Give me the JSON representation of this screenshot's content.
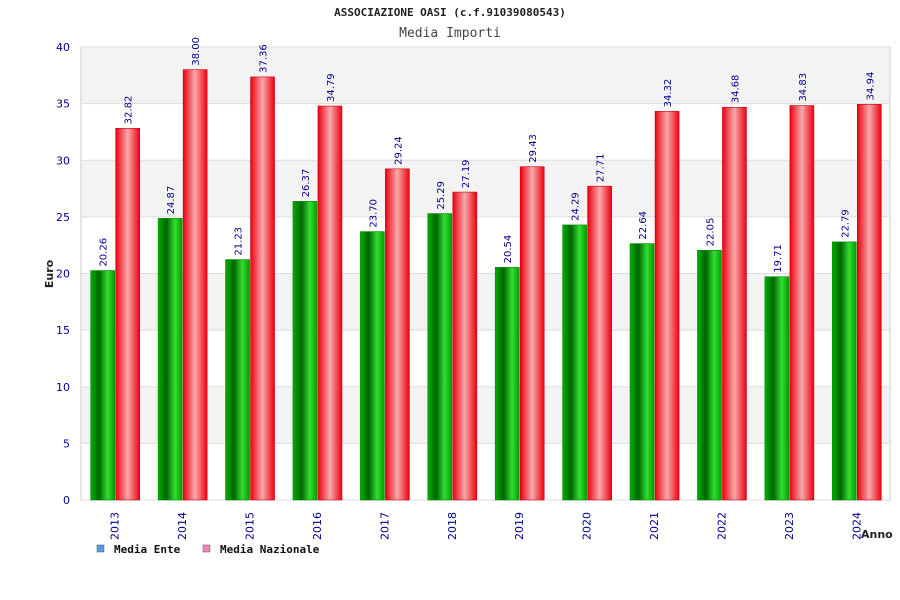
{
  "chart_data": {
    "type": "bar",
    "title": "ASSOCIAZIONE OASI (c.f.91039080543)",
    "subtitle": "Media Importi",
    "xlabel": "Anno",
    "ylabel": "Euro",
    "ylim": [
      0,
      40
    ],
    "yticks": [
      "0",
      "5",
      "10",
      "15",
      "20",
      "25",
      "30",
      "35",
      "40"
    ],
    "categories": [
      "2013",
      "2014",
      "2015",
      "2016",
      "2017",
      "2018",
      "2019",
      "2020",
      "2021",
      "2022",
      "2023",
      "2024"
    ],
    "series": [
      {
        "name": "Media Ente",
        "values": [
          20.26,
          24.87,
          21.23,
          26.37,
          23.7,
          25.29,
          20.54,
          24.29,
          22.64,
          22.05,
          19.71,
          22.79
        ],
        "labels": [
          "20.26",
          "24.87",
          "21.23",
          "26.37",
          "23.70",
          "25.29",
          "20.54",
          "24.29",
          "22.64",
          "22.05",
          "19.71",
          "22.79"
        ],
        "color": "#00a000",
        "legend_color": "#5599ee"
      },
      {
        "name": "Media Nazionale",
        "values": [
          32.82,
          38.0,
          37.36,
          34.79,
          29.24,
          27.19,
          29.43,
          27.71,
          34.32,
          34.68,
          34.83,
          34.94
        ],
        "labels": [
          "32.82",
          "38.00",
          "37.36",
          "34.79",
          "29.24",
          "27.19",
          "29.43",
          "27.71",
          "34.32",
          "34.68",
          "34.83",
          "34.94"
        ],
        "color": "#ee1122",
        "legend_color": "#ee88bb"
      }
    ],
    "grid": true,
    "legend_position": "bottom-left"
  }
}
